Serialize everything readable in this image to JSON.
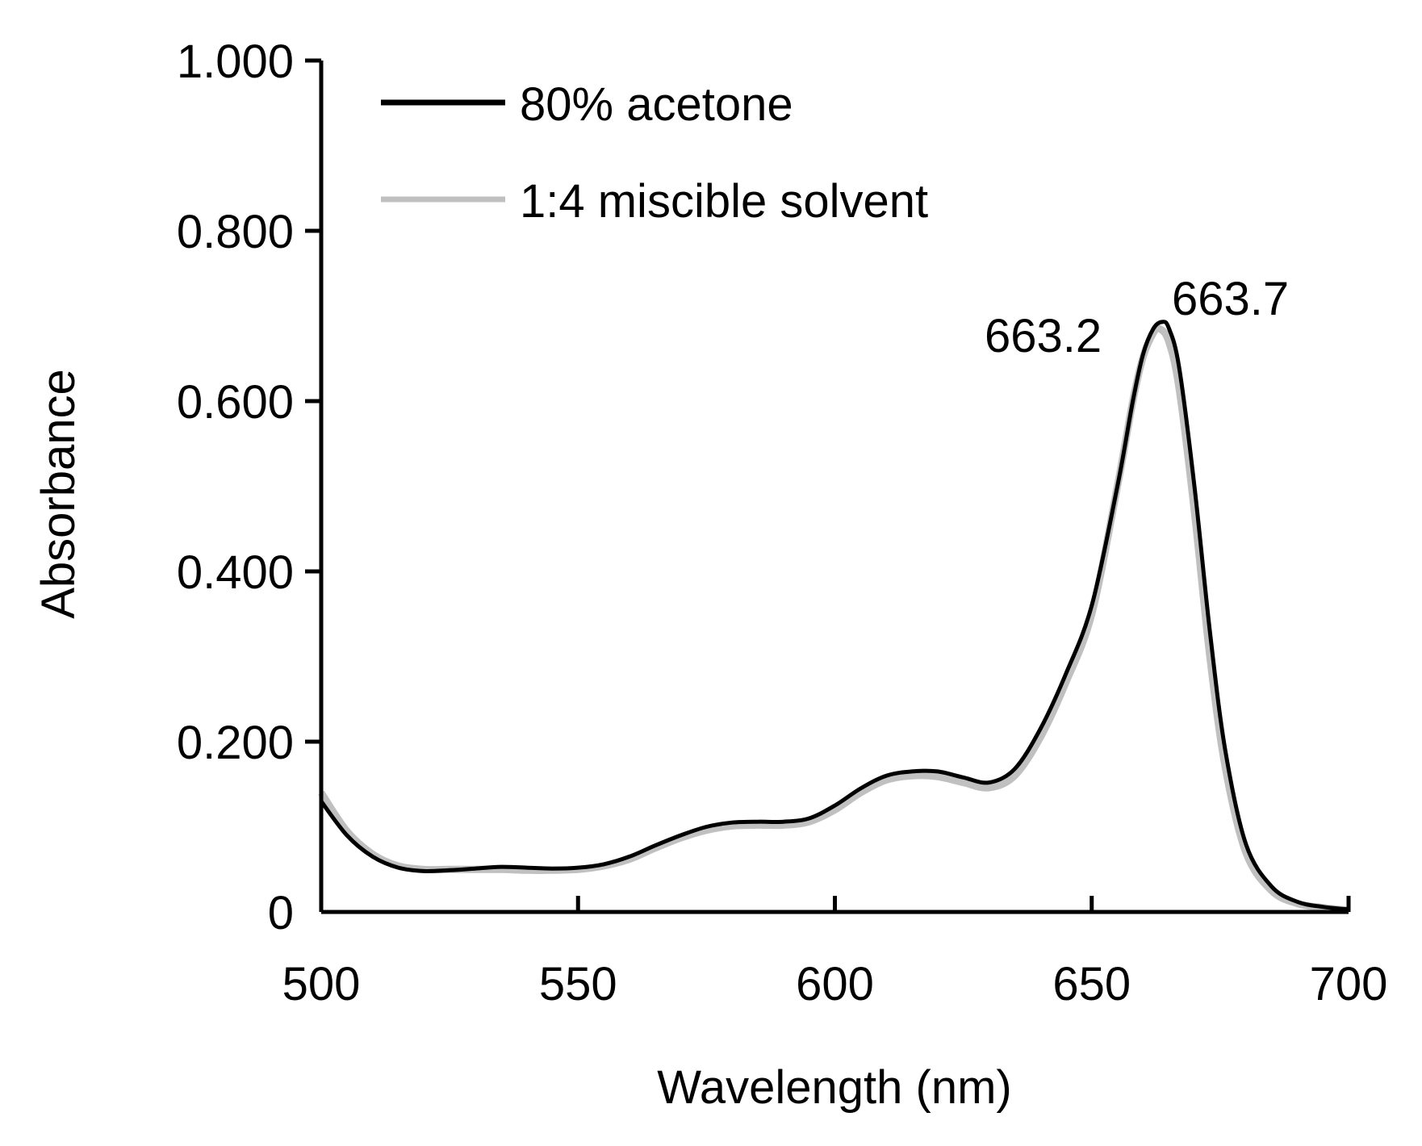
{
  "chart_data": {
    "type": "line",
    "title": "",
    "xlabel": "Wavelength (nm)",
    "ylabel": "Absorbance",
    "xlim": [
      500,
      700
    ],
    "ylim": [
      0,
      1.0
    ],
    "x_ticks": [
      "500",
      "550",
      "600",
      "650",
      "700"
    ],
    "y_ticks": [
      "0",
      "0.200",
      "0.400",
      "0.600",
      "0.800",
      "1.000"
    ],
    "grid": false,
    "legend_position": "top-left",
    "series": [
      {
        "name": "80% acetone",
        "color": "#000000",
        "x": [
          500,
          505,
          510,
          515,
          520,
          525,
          530,
          535,
          540,
          545,
          550,
          555,
          560,
          565,
          570,
          575,
          580,
          585,
          590,
          595,
          600,
          605,
          610,
          615,
          620,
          625,
          630,
          635,
          640,
          645,
          650,
          655,
          658,
          660,
          662,
          663.7,
          665,
          667,
          670,
          673,
          676,
          680,
          685,
          690,
          695,
          700
        ],
        "y": [
          0.13,
          0.09,
          0.065,
          0.052,
          0.048,
          0.049,
          0.051,
          0.053,
          0.052,
          0.051,
          0.052,
          0.056,
          0.065,
          0.078,
          0.09,
          0.1,
          0.105,
          0.106,
          0.106,
          0.11,
          0.125,
          0.145,
          0.16,
          0.165,
          0.165,
          0.158,
          0.152,
          0.168,
          0.215,
          0.28,
          0.36,
          0.5,
          0.6,
          0.655,
          0.685,
          0.693,
          0.686,
          0.64,
          0.5,
          0.33,
          0.19,
          0.08,
          0.03,
          0.012,
          0.006,
          0.003
        ]
      },
      {
        "name": "1:4 miscible solvent",
        "color": "#c0c0c0",
        "x": [
          500,
          505,
          510,
          515,
          520,
          525,
          530,
          535,
          540,
          545,
          550,
          555,
          560,
          565,
          570,
          575,
          580,
          585,
          590,
          595,
          600,
          605,
          610,
          615,
          620,
          625,
          630,
          635,
          640,
          645,
          650,
          655,
          658,
          660,
          662,
          663.2,
          665,
          667,
          670,
          673,
          676,
          680,
          685,
          690,
          695,
          700
        ],
        "y": [
          0.14,
          0.095,
          0.068,
          0.054,
          0.05,
          0.05,
          0.05,
          0.05,
          0.049,
          0.049,
          0.05,
          0.054,
          0.062,
          0.075,
          0.087,
          0.096,
          0.101,
          0.102,
          0.102,
          0.106,
          0.12,
          0.14,
          0.155,
          0.16,
          0.159,
          0.152,
          0.146,
          0.16,
          0.205,
          0.27,
          0.35,
          0.5,
          0.6,
          0.652,
          0.68,
          0.685,
          0.67,
          0.615,
          0.47,
          0.3,
          0.17,
          0.07,
          0.025,
          0.01,
          0.005,
          0.002
        ]
      }
    ],
    "annotations": [
      {
        "text": "663.2",
        "x": 663.2,
        "y": 0.685
      },
      {
        "text": "663.7",
        "x": 663.7,
        "y": 0.693
      }
    ]
  }
}
